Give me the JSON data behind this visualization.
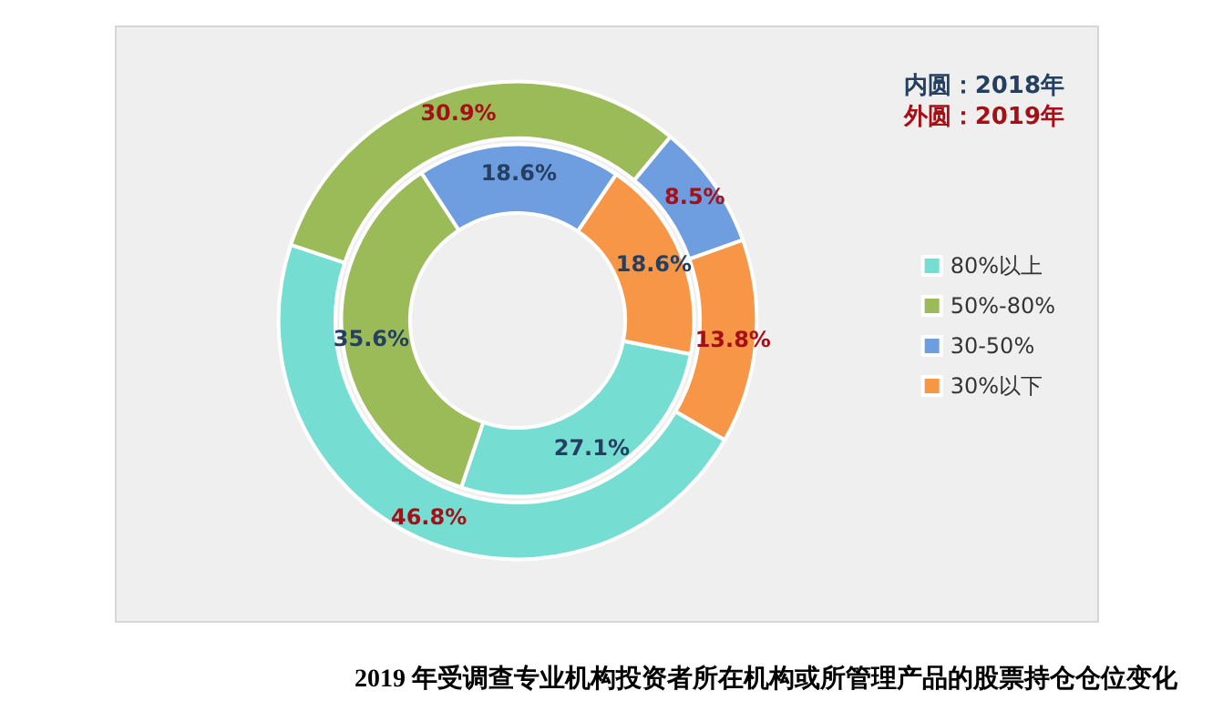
{
  "chart_data": {
    "type": "donut",
    "title": "2019 年受调查专业机构投资者所在机构或所管理产品的股票持仓仓位变化",
    "categories": [
      "80%以上",
      "50%-80%",
      "30-50%",
      "30%以下"
    ],
    "colors": [
      "#76ddd3",
      "#9bbb59",
      "#6f9ee0",
      "#f79646"
    ],
    "series": [
      {
        "values": [
          27.1,
          35.6,
          18.6,
          18.6
        ],
        "value_labels": [
          "27.1%",
          "35.6%",
          "18.6%",
          "18.6%"
        ]
      },
      {
        "values": [
          46.8,
          30.9,
          8.5,
          13.8
        ],
        "value_labels": [
          "46.8%",
          "30.9%",
          "8.5%",
          "13.8%"
        ]
      }
    ],
    "annotations": [
      "内圆：2018年",
      "外圆：2019年"
    ],
    "legend": "right"
  }
}
